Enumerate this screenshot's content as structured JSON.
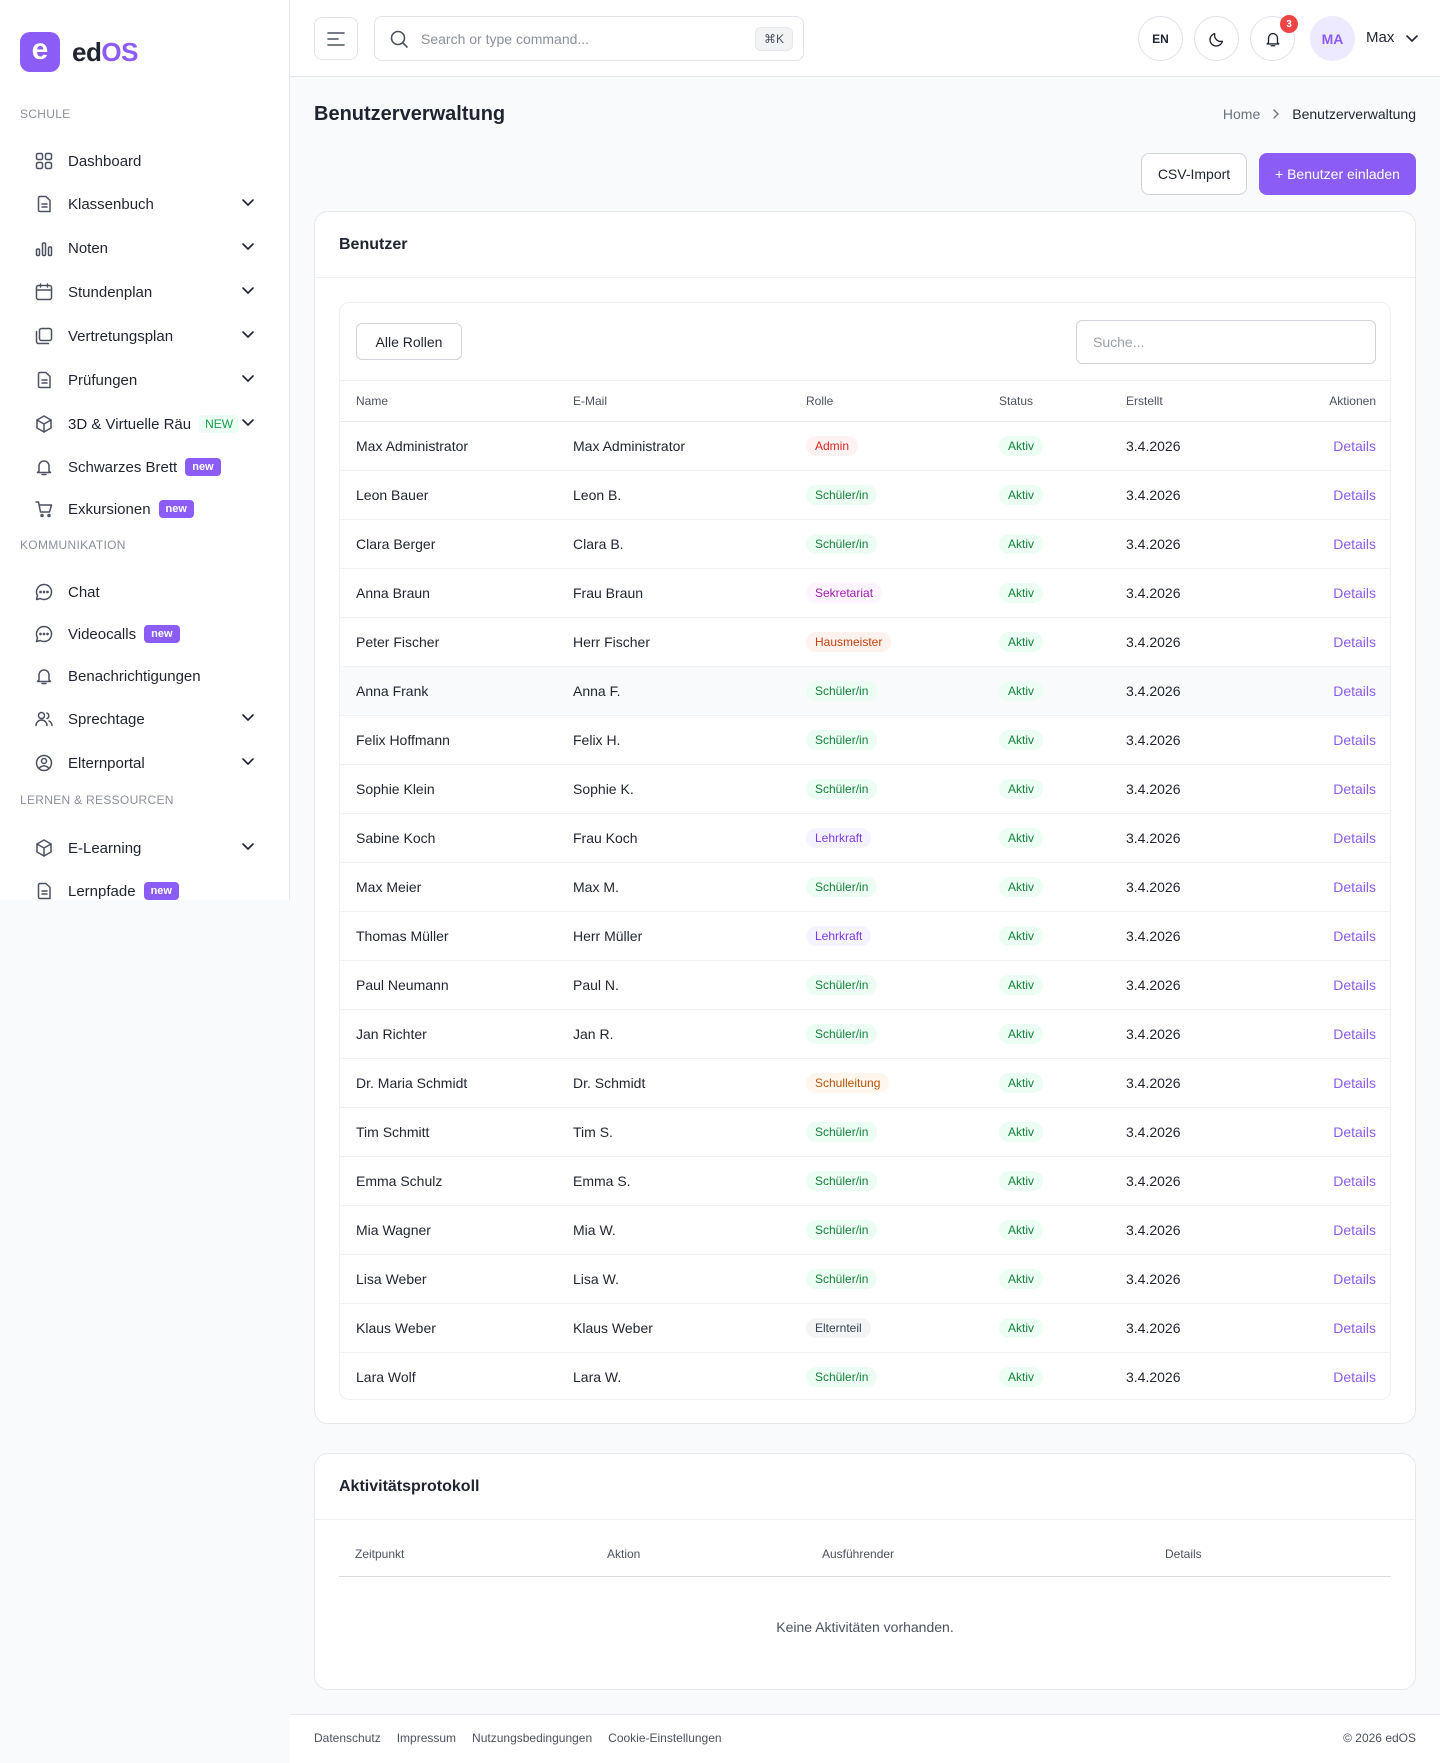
{
  "brand": {
    "name_main": "ed",
    "name_accent": "OS",
    "logo_letter": "e"
  },
  "sidebar": {
    "sections": [
      {
        "label": "SCHULE",
        "items": [
          {
            "label": "Dashboard",
            "icon": "grid-icon",
            "chevron": false
          },
          {
            "label": "Klassenbuch",
            "icon": "document-icon",
            "chevron": true
          },
          {
            "label": "Noten",
            "icon": "bar-chart-icon",
            "chevron": true
          },
          {
            "label": "Stundenplan",
            "icon": "calendar-icon",
            "chevron": true
          },
          {
            "label": "Vertretungsplan",
            "icon": "copy-icon",
            "chevron": true
          },
          {
            "label": "Prüfungen",
            "icon": "document-icon",
            "chevron": true
          },
          {
            "label": "3D & Virtuelle Räu",
            "icon": "cube-icon",
            "chevron": true,
            "badge": "NEW",
            "badge_style": "NEW"
          },
          {
            "label": "Schwarzes Brett",
            "icon": "bell-icon",
            "chevron": false,
            "badge": "new",
            "badge_style": "new"
          },
          {
            "label": "Exkursionen",
            "icon": "cart-icon",
            "chevron": false,
            "badge": "new",
            "badge_style": "new"
          }
        ]
      },
      {
        "label": "KOMMUNIKATION",
        "items": [
          {
            "label": "Chat",
            "icon": "chat-icon",
            "chevron": false
          },
          {
            "label": "Videocalls",
            "icon": "chat-icon",
            "chevron": false,
            "badge": "new",
            "badge_style": "new"
          },
          {
            "label": "Benachrichtigungen",
            "icon": "bell-icon",
            "chevron": false
          },
          {
            "label": "Sprechtage",
            "icon": "users-icon",
            "chevron": true
          },
          {
            "label": "Elternportal",
            "icon": "user-circle-icon",
            "chevron": true
          }
        ]
      },
      {
        "label": "LERNEN & RESSOURCEN",
        "items": [
          {
            "label": "E-Learning",
            "icon": "cube-icon",
            "chevron": true
          },
          {
            "label": "Lernpfade",
            "icon": "document-icon",
            "chevron": false,
            "badge": "new",
            "badge_style": "new"
          }
        ]
      }
    ]
  },
  "header": {
    "search_placeholder": "Search or type command...",
    "shortcut": "⌘K",
    "language": "EN",
    "notification_count": "3",
    "avatar_initials": "MA",
    "user_name": "Max"
  },
  "page": {
    "title": "Benutzerverwaltung",
    "breadcrumb_home": "Home",
    "breadcrumb_current": "Benutzerverwaltung",
    "csv_import_label": "CSV-Import",
    "invite_label": "+ Benutzer einladen"
  },
  "users_card": {
    "title": "Benutzer",
    "role_filter": "Alle Rollen",
    "search_placeholder": "Suche...",
    "columns": {
      "name": "Name",
      "email": "E-Mail",
      "role": "Rolle",
      "status": "Status",
      "created": "Erstellt",
      "actions": "Aktionen"
    },
    "rows": [
      {
        "name": "Max Administrator",
        "email": "Max Administrator",
        "role": "Admin",
        "role_color": "#dc2626",
        "role_bg": "#fef2f2",
        "status": "Aktiv",
        "created": "3.4.2026",
        "action": "Details"
      },
      {
        "name": "Leon Bauer",
        "email": "Leon B.",
        "role": "Schüler/in",
        "role_color": "#15803d",
        "role_bg": "#ecfdf3",
        "status": "Aktiv",
        "created": "3.4.2026",
        "action": "Details"
      },
      {
        "name": "Clara Berger",
        "email": "Clara B.",
        "role": "Schüler/in",
        "role_color": "#15803d",
        "role_bg": "#ecfdf3",
        "status": "Aktiv",
        "created": "3.4.2026",
        "action": "Details"
      },
      {
        "name": "Anna Braun",
        "email": "Frau Braun",
        "role": "Sekretariat",
        "role_color": "#a21caf",
        "role_bg": "#fdf4ff",
        "status": "Aktiv",
        "created": "3.4.2026",
        "action": "Details"
      },
      {
        "name": "Peter Fischer",
        "email": "Herr Fischer",
        "role": "Hausmeister",
        "role_color": "#c2410c",
        "role_bg": "#fef2ee",
        "status": "Aktiv",
        "created": "3.4.2026",
        "action": "Details"
      },
      {
        "name": "Anna Frank",
        "email": "Anna F.",
        "role": "Schüler/in",
        "role_color": "#15803d",
        "role_bg": "#ecfdf3",
        "status": "Aktiv",
        "created": "3.4.2026",
        "action": "Details",
        "highlight": true
      },
      {
        "name": "Felix Hoffmann",
        "email": "Felix H.",
        "role": "Schüler/in",
        "role_color": "#15803d",
        "role_bg": "#ecfdf3",
        "status": "Aktiv",
        "created": "3.4.2026",
        "action": "Details"
      },
      {
        "name": "Sophie Klein",
        "email": "Sophie K.",
        "role": "Schüler/in",
        "role_color": "#15803d",
        "role_bg": "#ecfdf3",
        "status": "Aktiv",
        "created": "3.4.2026",
        "action": "Details"
      },
      {
        "name": "Sabine Koch",
        "email": "Frau Koch",
        "role": "Lehrkraft",
        "role_color": "#7c3aed",
        "role_bg": "#f5f3ff",
        "status": "Aktiv",
        "created": "3.4.2026",
        "action": "Details"
      },
      {
        "name": "Max Meier",
        "email": "Max M.",
        "role": "Schüler/in",
        "role_color": "#15803d",
        "role_bg": "#ecfdf3",
        "status": "Aktiv",
        "created": "3.4.2026",
        "action": "Details"
      },
      {
        "name": "Thomas Müller",
        "email": "Herr Müller",
        "role": "Lehrkraft",
        "role_color": "#7c3aed",
        "role_bg": "#f5f3ff",
        "status": "Aktiv",
        "created": "3.4.2026",
        "action": "Details"
      },
      {
        "name": "Paul Neumann",
        "email": "Paul N.",
        "role": "Schüler/in",
        "role_color": "#15803d",
        "role_bg": "#ecfdf3",
        "status": "Aktiv",
        "created": "3.4.2026",
        "action": "Details"
      },
      {
        "name": "Jan Richter",
        "email": "Jan R.",
        "role": "Schüler/in",
        "role_color": "#15803d",
        "role_bg": "#ecfdf3",
        "status": "Aktiv",
        "created": "3.4.2026",
        "action": "Details"
      },
      {
        "name": "Dr. Maria Schmidt",
        "email": "Dr. Schmidt",
        "role": "Schulleitung",
        "role_color": "#b45309",
        "role_bg": "#fff7ed",
        "status": "Aktiv",
        "created": "3.4.2026",
        "action": "Details"
      },
      {
        "name": "Tim Schmitt",
        "email": "Tim S.",
        "role": "Schüler/in",
        "role_color": "#15803d",
        "role_bg": "#ecfdf3",
        "status": "Aktiv",
        "created": "3.4.2026",
        "action": "Details"
      },
      {
        "name": "Emma Schulz",
        "email": "Emma S.",
        "role": "Schüler/in",
        "role_color": "#15803d",
        "role_bg": "#ecfdf3",
        "status": "Aktiv",
        "created": "3.4.2026",
        "action": "Details"
      },
      {
        "name": "Mia Wagner",
        "email": "Mia W.",
        "role": "Schüler/in",
        "role_color": "#15803d",
        "role_bg": "#ecfdf3",
        "status": "Aktiv",
        "created": "3.4.2026",
        "action": "Details"
      },
      {
        "name": "Lisa Weber",
        "email": "Lisa W.",
        "role": "Schüler/in",
        "role_color": "#15803d",
        "role_bg": "#ecfdf3",
        "status": "Aktiv",
        "created": "3.4.2026",
        "action": "Details"
      },
      {
        "name": "Klaus Weber",
        "email": "Klaus Weber",
        "role": "Elternteil",
        "role_color": "#374151",
        "role_bg": "#f3f4f6",
        "status": "Aktiv",
        "created": "3.4.2026",
        "action": "Details"
      },
      {
        "name": "Lara Wolf",
        "email": "Lara W.",
        "role": "Schüler/in",
        "role_color": "#15803d",
        "role_bg": "#ecfdf3",
        "status": "Aktiv",
        "created": "3.4.2026",
        "action": "Details"
      }
    ]
  },
  "activity_card": {
    "title": "Aktivitätsprotokoll",
    "columns": {
      "time": "Zeitpunkt",
      "action": "Aktion",
      "actor": "Ausführender",
      "details": "Details"
    },
    "empty_text": "Keine Aktivitäten vorhanden."
  },
  "footer": {
    "links": [
      "Datenschutz",
      "Impressum",
      "Nutzungsbedingungen",
      "Cookie-Einstellungen"
    ],
    "copyright": "© 2026 edOS"
  },
  "colors": {
    "accent": "#8b5cf6",
    "status_green": "#15803d",
    "status_bg": "#ecfdf3",
    "danger": "#ef4444"
  }
}
